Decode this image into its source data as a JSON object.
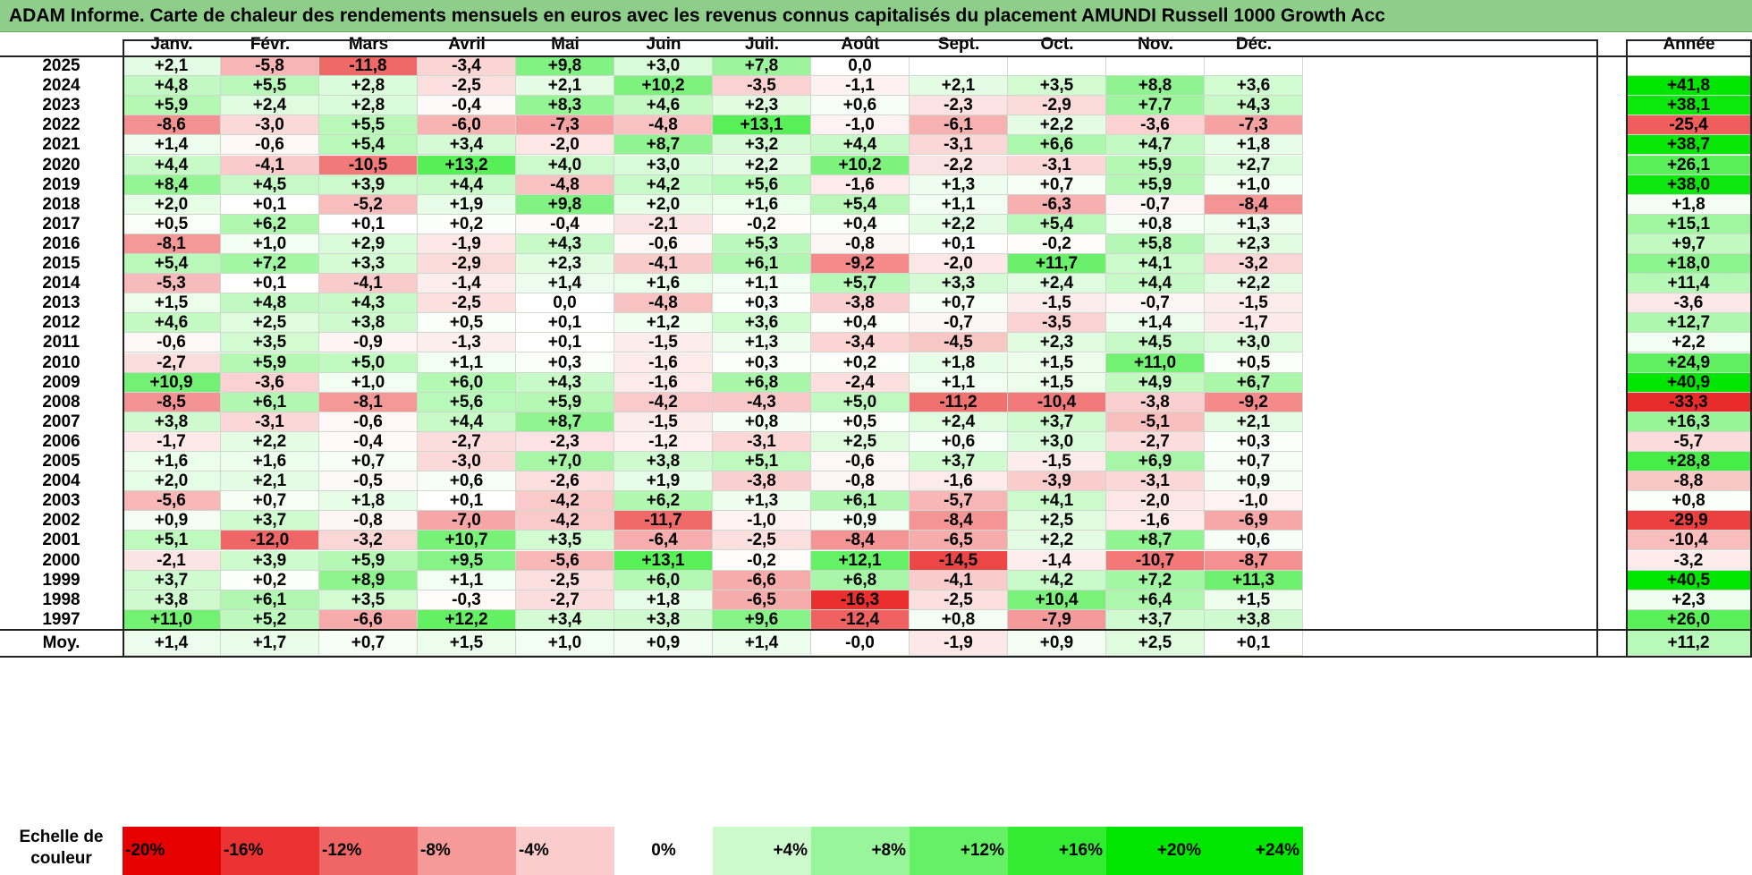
{
  "title": "ADAM Informe. Carte de chaleur des rendements mensuels en euros avec les revenus connus capitalisés du placement AMUNDI Russell 1000 Growth Acc",
  "months": [
    "Janv.",
    "Févr.",
    "Mars",
    "Avril",
    "Mai",
    "Juin",
    "Juil.",
    "Août",
    "Sept.",
    "Oct.",
    "Nov.",
    "Déc."
  ],
  "year_header": "Année",
  "average_label": "Moy.",
  "scale_label_line1": "Echelle de",
  "scale_label_line2": "couleur",
  "scale": [
    "-20%",
    "-16%",
    "-12%",
    "-8%",
    "-4%",
    "0%",
    "+4%",
    "+8%",
    "+12%",
    "+16%",
    "+20%",
    "+24%"
  ],
  "colors": {
    "negative": "#e60000",
    "neutral": "#ffffff",
    "positive": "#00e600",
    "title_bar": "#8fce8a"
  },
  "chart_data": {
    "type": "heatmap",
    "title": "ADAM Informe. Carte de chaleur des rendements mensuels en euros avec les revenus connus capitalisés du placement AMUNDI Russell 1000 Growth Acc",
    "x_categories": [
      "Janv.",
      "Févr.",
      "Mars",
      "Avril",
      "Mai",
      "Juin",
      "Juil.",
      "Août",
      "Sept.",
      "Oct.",
      "Nov.",
      "Déc."
    ],
    "rows": [
      {
        "year": "2025",
        "values": [
          "+2,1",
          "-5,8",
          "-11,8",
          "-3,4",
          "+9,8",
          "+3,0",
          "+7,8",
          "0,0",
          "",
          "",
          "",
          ""
        ],
        "annual": ""
      },
      {
        "year": "2024",
        "values": [
          "+4,8",
          "+5,5",
          "+2,8",
          "-2,5",
          "+2,1",
          "+10,2",
          "-3,5",
          "-1,1",
          "+2,1",
          "+3,5",
          "+8,8",
          "+3,6"
        ],
        "annual": "+41,8"
      },
      {
        "year": "2023",
        "values": [
          "+5,9",
          "+2,4",
          "+2,8",
          "-0,4",
          "+8,3",
          "+4,6",
          "+2,3",
          "+0,6",
          "-2,3",
          "-2,9",
          "+7,7",
          "+4,3"
        ],
        "annual": "+38,1"
      },
      {
        "year": "2022",
        "values": [
          "-8,6",
          "-3,0",
          "+5,5",
          "-6,0",
          "-7,3",
          "-4,8",
          "+13,1",
          "-1,0",
          "-6,1",
          "+2,2",
          "-3,6",
          "-7,3"
        ],
        "annual": "-25,4"
      },
      {
        "year": "2021",
        "values": [
          "+1,4",
          "-0,6",
          "+5,4",
          "+3,4",
          "-2,0",
          "+8,7",
          "+3,2",
          "+4,4",
          "-3,1",
          "+6,6",
          "+4,7",
          "+1,8"
        ],
        "annual": "+38,7"
      },
      {
        "year": "2020",
        "values": [
          "+4,4",
          "-4,1",
          "-10,5",
          "+13,2",
          "+4,0",
          "+3,0",
          "+2,2",
          "+10,2",
          "-2,2",
          "-3,1",
          "+5,9",
          "+2,7"
        ],
        "annual": "+26,1"
      },
      {
        "year": "2019",
        "values": [
          "+8,4",
          "+4,5",
          "+3,9",
          "+4,4",
          "-4,8",
          "+4,2",
          "+5,6",
          "-1,6",
          "+1,3",
          "+0,7",
          "+5,9",
          "+1,0"
        ],
        "annual": "+38,0"
      },
      {
        "year": "2018",
        "values": [
          "+2,0",
          "+0,1",
          "-5,2",
          "+1,9",
          "+9,8",
          "+2,0",
          "+1,6",
          "+5,4",
          "+1,1",
          "-6,3",
          "-0,7",
          "-8,4"
        ],
        "annual": "+1,8"
      },
      {
        "year": "2017",
        "values": [
          "+0,5",
          "+6,2",
          "+0,1",
          "+0,2",
          "-0,4",
          "-2,1",
          "-0,2",
          "+0,4",
          "+2,2",
          "+5,4",
          "+0,8",
          "+1,3"
        ],
        "annual": "+15,1"
      },
      {
        "year": "2016",
        "values": [
          "-8,1",
          "+1,0",
          "+2,9",
          "-1,9",
          "+4,3",
          "-0,6",
          "+5,3",
          "-0,8",
          "+0,1",
          "-0,2",
          "+5,8",
          "+2,3"
        ],
        "annual": "+9,7"
      },
      {
        "year": "2015",
        "values": [
          "+5,4",
          "+7,2",
          "+3,3",
          "-2,9",
          "+2,3",
          "-4,1",
          "+6,1",
          "-9,2",
          "-2,0",
          "+11,7",
          "+4,1",
          "-3,2"
        ],
        "annual": "+18,0"
      },
      {
        "year": "2014",
        "values": [
          "-5,3",
          "+0,1",
          "-4,1",
          "-1,4",
          "+1,4",
          "+1,6",
          "+1,1",
          "+5,7",
          "+3,3",
          "+2,4",
          "+4,4",
          "+2,2"
        ],
        "annual": "+11,4"
      },
      {
        "year": "2013",
        "values": [
          "+1,5",
          "+4,8",
          "+4,3",
          "-2,5",
          "0,0",
          "-4,8",
          "+0,3",
          "-3,8",
          "+0,7",
          "-1,5",
          "-0,7",
          "-1,5"
        ],
        "annual": "-3,6"
      },
      {
        "year": "2012",
        "values": [
          "+4,6",
          "+2,5",
          "+3,8",
          "+0,5",
          "+0,1",
          "+1,2",
          "+3,6",
          "+0,4",
          "-0,7",
          "-3,5",
          "+1,4",
          "-1,7"
        ],
        "annual": "+12,7"
      },
      {
        "year": "2011",
        "values": [
          "-0,6",
          "+3,5",
          "-0,9",
          "-1,3",
          "+0,1",
          "-1,5",
          "+1,3",
          "-3,4",
          "-4,5",
          "+2,3",
          "+4,5",
          "+3,0"
        ],
        "annual": "+2,2"
      },
      {
        "year": "2010",
        "values": [
          "-2,7",
          "+5,9",
          "+5,0",
          "+1,1",
          "+0,3",
          "-1,6",
          "+0,3",
          "+0,2",
          "+1,8",
          "+1,5",
          "+11,0",
          "+0,5"
        ],
        "annual": "+24,9"
      },
      {
        "year": "2009",
        "values": [
          "+10,9",
          "-3,6",
          "+1,0",
          "+6,0",
          "+4,3",
          "-1,6",
          "+6,8",
          "-2,4",
          "+1,1",
          "+1,5",
          "+4,9",
          "+6,7"
        ],
        "annual": "+40,9"
      },
      {
        "year": "2008",
        "values": [
          "-8,5",
          "+6,1",
          "-8,1",
          "+5,6",
          "+5,9",
          "-4,2",
          "-4,3",
          "+5,0",
          "-11,2",
          "-10,4",
          "-3,8",
          "-9,2"
        ],
        "annual": "-33,3"
      },
      {
        "year": "2007",
        "values": [
          "+3,8",
          "-3,1",
          "-0,6",
          "+4,4",
          "+8,7",
          "-1,5",
          "+0,8",
          "+0,5",
          "+2,4",
          "+3,7",
          "-5,1",
          "+2,1"
        ],
        "annual": "+16,3"
      },
      {
        "year": "2006",
        "values": [
          "-1,7",
          "+2,2",
          "-0,4",
          "-2,7",
          "-2,3",
          "-1,2",
          "-3,1",
          "+2,5",
          "+0,6",
          "+3,0",
          "-2,7",
          "+0,3"
        ],
        "annual": "-5,7"
      },
      {
        "year": "2005",
        "values": [
          "+1,6",
          "+1,6",
          "+0,7",
          "-3,0",
          "+7,0",
          "+3,8",
          "+5,1",
          "-0,6",
          "+3,7",
          "-1,5",
          "+6,9",
          "+0,7"
        ],
        "annual": "+28,8"
      },
      {
        "year": "2004",
        "values": [
          "+2,0",
          "+2,1",
          "-0,5",
          "+0,6",
          "-2,6",
          "+1,9",
          "-3,8",
          "-0,8",
          "-1,6",
          "-3,9",
          "-3,1",
          "+0,9"
        ],
        "annual": "-8,8"
      },
      {
        "year": "2003",
        "values": [
          "-5,6",
          "+0,7",
          "+1,8",
          "+0,1",
          "-4,2",
          "+6,2",
          "+1,3",
          "+6,1",
          "-5,7",
          "+4,1",
          "-2,0",
          "-1,0"
        ],
        "annual": "+0,8"
      },
      {
        "year": "2002",
        "values": [
          "+0,9",
          "+3,7",
          "-0,8",
          "-7,0",
          "-4,2",
          "-11,7",
          "-1,0",
          "+0,9",
          "-8,4",
          "+2,5",
          "-1,6",
          "-6,9"
        ],
        "annual": "-29,9"
      },
      {
        "year": "2001",
        "values": [
          "+5,1",
          "-12,0",
          "-3,2",
          "+10,7",
          "+3,5",
          "-6,4",
          "-2,5",
          "-8,4",
          "-6,5",
          "+2,2",
          "+8,7",
          "+0,6"
        ],
        "annual": "-10,4"
      },
      {
        "year": "2000",
        "values": [
          "-2,1",
          "+3,9",
          "+5,9",
          "+9,5",
          "-5,6",
          "+13,1",
          "-0,2",
          "+12,1",
          "-14,5",
          "-1,4",
          "-10,7",
          "-8,7"
        ],
        "annual": "-3,2"
      },
      {
        "year": "1999",
        "values": [
          "+3,7",
          "+0,2",
          "+8,9",
          "+1,1",
          "-2,5",
          "+6,0",
          "-6,6",
          "+6,8",
          "-4,1",
          "+4,2",
          "+7,2",
          "+11,3"
        ],
        "annual": "+40,5"
      },
      {
        "year": "1998",
        "values": [
          "+3,8",
          "+6,1",
          "+3,5",
          "-0,3",
          "-2,7",
          "+1,8",
          "-6,5",
          "-16,3",
          "-2,5",
          "+10,4",
          "+6,4",
          "+1,5"
        ],
        "annual": "+2,3"
      },
      {
        "year": "1997",
        "values": [
          "+11,0",
          "+5,2",
          "-6,6",
          "+12,2",
          "+3,4",
          "+3,8",
          "+9,6",
          "-12,4",
          "+0,8",
          "-7,9",
          "+3,7",
          "+3,8"
        ],
        "annual": "+26,0"
      }
    ],
    "average": {
      "values": [
        "+1,4",
        "+1,7",
        "+0,7",
        "+1,5",
        "+1,0",
        "+0,9",
        "+1,4",
        "-0,0",
        "-1,9",
        "+0,9",
        "+2,5",
        "+0,1"
      ],
      "annual": "+11,2"
    }
  }
}
